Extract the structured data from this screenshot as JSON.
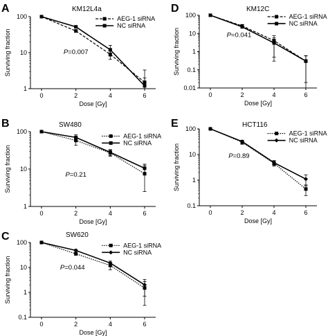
{
  "chart_data": [
    {
      "type": "line",
      "panel": "A",
      "title": "KM12L4a",
      "xlabel": "Dose [Gy]",
      "ylabel": "Surviving fraction",
      "x": [
        0,
        2,
        4,
        6
      ],
      "xticks": [
        "0",
        "2",
        "4",
        "6"
      ],
      "yscale": "log",
      "ylim": [
        1,
        100
      ],
      "yticks": [
        "1",
        "10",
        "100"
      ],
      "p_value": {
        "italic": "P",
        "rest": "=0.007"
      },
      "legend_position": "top-right",
      "series": [
        {
          "name": "AEG-1 siRNA",
          "style": "dashed",
          "marker": "square",
          "values": [
            100,
            40,
            9,
            1.5
          ],
          "err": [
            0,
            3,
            2.5,
            1.8
          ]
        },
        {
          "name": "NC siRNA",
          "style": "solid",
          "marker": "square",
          "values": [
            100,
            52,
            12,
            1.2
          ],
          "err": [
            0,
            3,
            4,
            0.8
          ]
        }
      ]
    },
    {
      "type": "line",
      "panel": "B",
      "title": "SW480",
      "xlabel": "Dose [Gy]",
      "ylabel": "Surviving fraction",
      "x": [
        0,
        2,
        4,
        6
      ],
      "xticks": [
        "0",
        "2",
        "4",
        "6"
      ],
      "yscale": "log",
      "ylim": [
        1,
        100
      ],
      "yticks": [
        "1",
        "10",
        "100"
      ],
      "p_value": {
        "italic": "P",
        "rest": "=0.21"
      },
      "legend_position": "top-right",
      "series": [
        {
          "name": "AEG-1 siRNA",
          "style": "dotted",
          "marker": "square",
          "values": [
            100,
            58,
            27,
            7.5
          ],
          "err": [
            0,
            15,
            5,
            5
          ]
        },
        {
          "name": "NC siRNA",
          "style": "solid",
          "marker": "square",
          "values": [
            100,
            70,
            28,
            10.5
          ],
          "err": [
            0,
            12,
            5,
            3
          ]
        }
      ]
    },
    {
      "type": "line",
      "panel": "C",
      "title": "SW620",
      "xlabel": "Dose [Gy]",
      "ylabel": "Surviving fraction",
      "x": [
        0,
        2,
        4,
        6
      ],
      "xticks": [
        "0",
        "2",
        "4",
        "6"
      ],
      "yscale": "log",
      "ylim": [
        0.1,
        100
      ],
      "yticks": [
        "0.1",
        "1",
        "10",
        "100"
      ],
      "p_value": {
        "italic": "P",
        "rest": "=0.044"
      },
      "legend_position": "top-right",
      "series": [
        {
          "name": "AEG-1 siRNA",
          "style": "dotted",
          "marker": "square",
          "values": [
            100,
            35,
            12,
            1.5
          ],
          "err": [
            0,
            4,
            4,
            1.2
          ]
        },
        {
          "name": "NC siRNA",
          "style": "solid",
          "marker": "diamond",
          "values": [
            100,
            48,
            15,
            2
          ],
          "err": [
            0,
            5,
            3,
            1.3
          ]
        }
      ]
    },
    {
      "type": "line",
      "panel": "D",
      "title": "KM12C",
      "xlabel": "Dose [Gy]",
      "ylabel": "Surviving fraction",
      "x": [
        0,
        2,
        4,
        6
      ],
      "xticks": [
        "0",
        "2",
        "4",
        "6"
      ],
      "yscale": "log",
      "ylim": [
        0.01,
        100
      ],
      "yticks": [
        "0.01",
        "0.1",
        "1",
        "10",
        "100"
      ],
      "p_value": {
        "italic": "P",
        "rest": "=0.041"
      },
      "legend_position": "top-right",
      "series": [
        {
          "name": "AEG-1 siRNA",
          "style": "dashed",
          "marker": "square",
          "values": [
            100,
            26,
            4,
            0.3
          ],
          "err": [
            0,
            3,
            3.5,
            0.3
          ]
        },
        {
          "name": "NC siRNA",
          "style": "solid",
          "marker": "square",
          "values": [
            100,
            23,
            3,
            0.3
          ],
          "err": [
            0,
            3,
            2.7,
            0.28
          ]
        }
      ]
    },
    {
      "type": "line",
      "panel": "E",
      "title": "HCT116",
      "xlabel": "Dose [Gy]",
      "ylabel": "Surviving fraction",
      "x": [
        0,
        2,
        4,
        6
      ],
      "xticks": [
        "0",
        "2",
        "4",
        "6"
      ],
      "yscale": "log",
      "ylim": [
        0.1,
        100
      ],
      "yticks": [
        "0.1",
        "1",
        "10",
        "100"
      ],
      "p_value": {
        "italic": "P",
        "rest": "=0.89"
      },
      "legend_position": "top-right",
      "series": [
        {
          "name": "AEG-1 siRNA",
          "style": "dotted",
          "marker": "square",
          "values": [
            100,
            30,
            4.5,
            0.45
          ],
          "err": [
            0,
            5,
            1,
            0.2
          ]
        },
        {
          "name": "NC siRNA",
          "style": "solid",
          "marker": "diamond",
          "values": [
            100,
            32,
            4.8,
            1.1
          ],
          "err": [
            0,
            4,
            1,
            0.5
          ]
        }
      ]
    }
  ]
}
